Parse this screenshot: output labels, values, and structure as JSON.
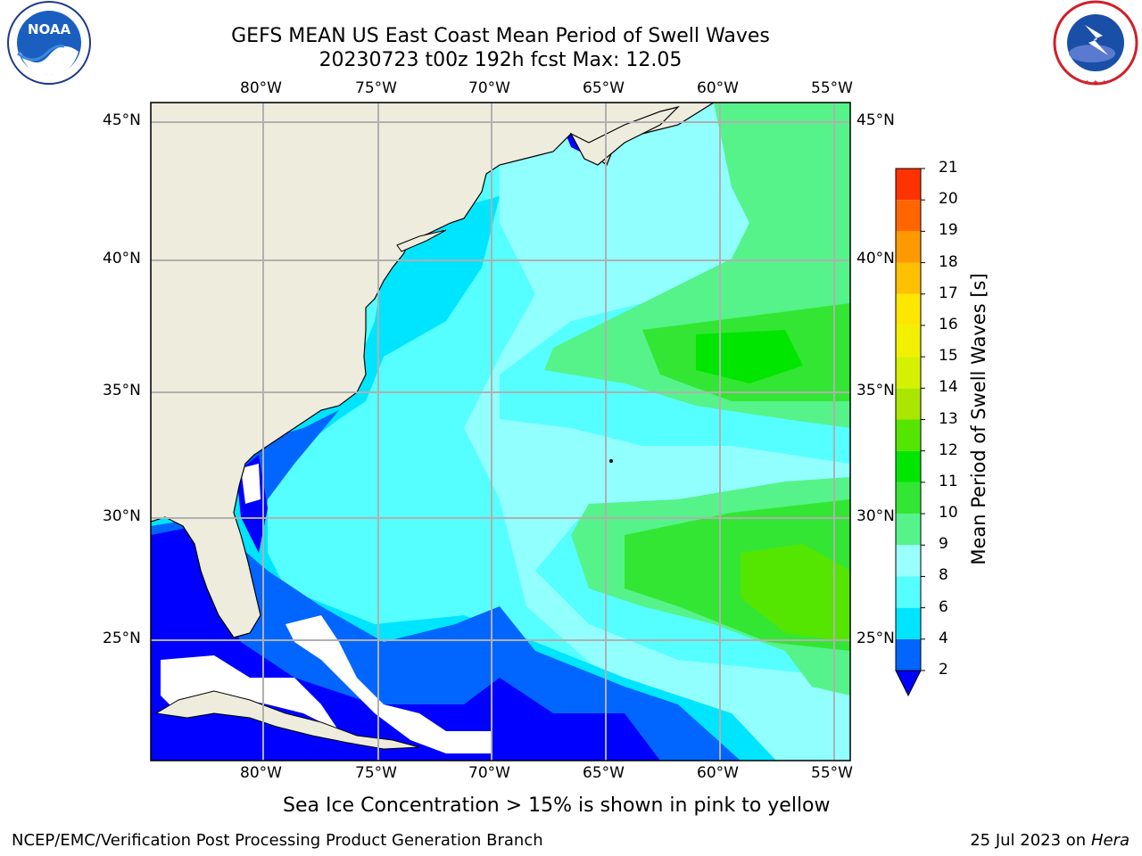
{
  "title": {
    "line1": "GEFS MEAN US East Coast Mean Period of Swell Waves",
    "line2": "20230723 t00z 192h fcst   Max: 12.05"
  },
  "logos": {
    "noaa": {
      "text": "NOAA",
      "ring_text": "NATIONAL OCEANIC AND ATMOSPHERIC ADMINISTRATION · U.S. DEPARTMENT OF COMMERCE"
    },
    "nws": {
      "ring_text": "NATIONAL WEATHER SERVICE"
    }
  },
  "map": {
    "lon_labels": [
      "80°W",
      "75°W",
      "70°W",
      "65°W",
      "60°W",
      "55°W"
    ],
    "lat_labels": [
      "45°N",
      "40°N",
      "35°N",
      "30°N",
      "25°N"
    ],
    "colors": {
      "land": "#eeecdc",
      "grid": "#b0b0b0",
      "coast": "#000000",
      "no_data": "#ffffff"
    }
  },
  "colorbar": {
    "title": "Mean Period of Swell Waves [s]",
    "ticks": [
      "2",
      "4",
      "6",
      "8",
      "9",
      "10",
      "11",
      "12",
      "13",
      "14",
      "15",
      "16",
      "17",
      "18",
      "19",
      "20",
      "21"
    ],
    "colors": [
      "#0066ff",
      "#00e5ff",
      "#55ffff",
      "#99ffff",
      "#55f38a",
      "#33e633",
      "#00e600",
      "#55e600",
      "#aae600",
      "#d5f000",
      "#f0f000",
      "#ffe600",
      "#ffc000",
      "#ff9900",
      "#ff6600",
      "#ff3300",
      "#ff0000"
    ],
    "under_color": "#0000ff"
  },
  "notes": {
    "sea_ice": "Sea Ice Concentration > 15% is shown in pink to yellow"
  },
  "footer": {
    "left": "NCEP/EMC/Verification Post Processing Product Generation Branch",
    "right_date": "25 Jul 2023 on",
    "right_machine": "Hera"
  }
}
